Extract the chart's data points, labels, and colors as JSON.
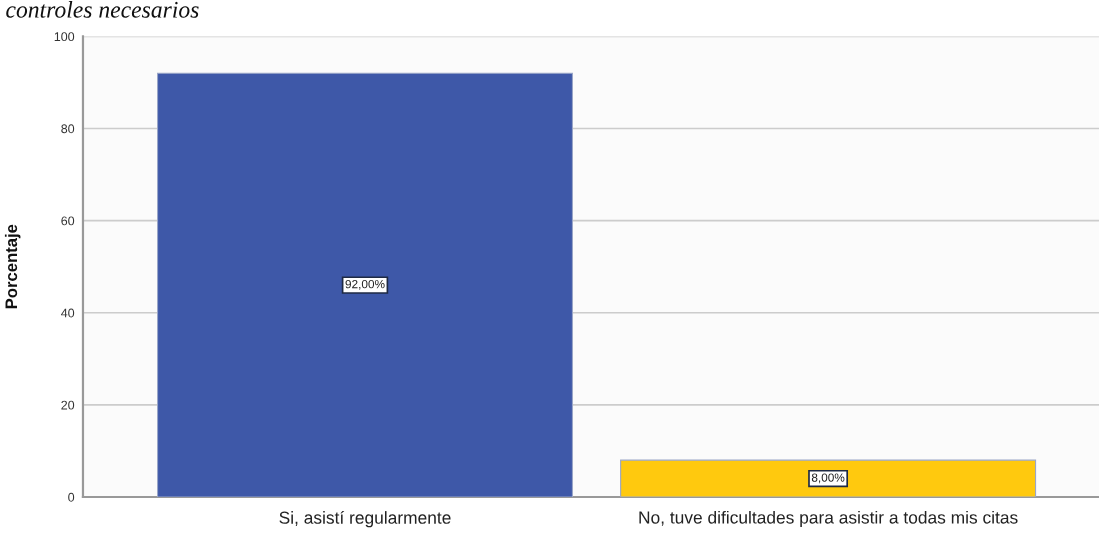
{
  "chart_data": {
    "type": "bar",
    "title": "controles necesarios",
    "ylabel": "Porcentaje",
    "categories": [
      "Si, asistí regularmente",
      "No, tuve dificultades para asistir a todas mis citas"
    ],
    "values": [
      92,
      8
    ],
    "colors": [
      "#3e58a8",
      "#ffc90e"
    ],
    "value_labels": [
      "92,00%",
      "8,00%"
    ],
    "ylim": [
      0,
      100
    ],
    "yticks": [
      0,
      20,
      40,
      60,
      80,
      100
    ],
    "grid": "y",
    "legend": false
  }
}
